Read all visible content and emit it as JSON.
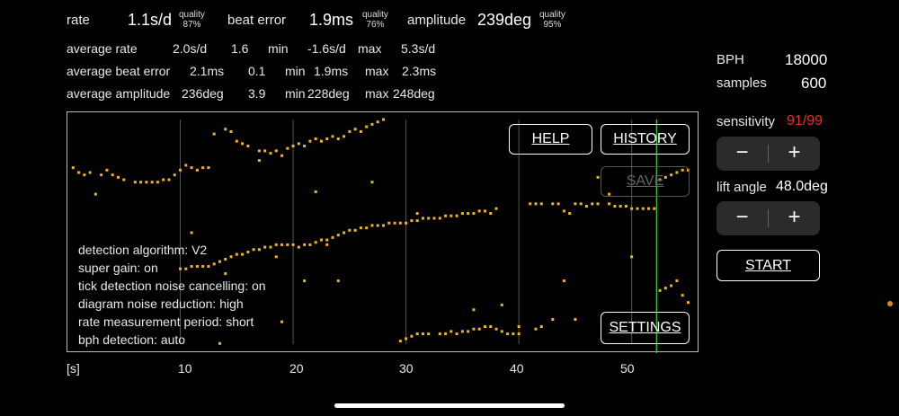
{
  "top": {
    "rate_label": "rate",
    "rate_value": "1.1s/d",
    "rate_quality_label": "quality",
    "rate_quality_value": "87%",
    "beat_label": "beat error",
    "beat_value": "1.9ms",
    "beat_quality_label": "quality",
    "beat_quality_value": "76%",
    "amp_label": "amplitude",
    "amp_value": "239deg",
    "amp_quality_label": "quality",
    "amp_quality_value": "95%"
  },
  "averages": {
    "rate": {
      "label": "average rate",
      "value": "2.0s/d",
      "spread": "1.6",
      "min_label": "min",
      "min": "-1.6s/d",
      "max_label": "max",
      "max": "5.3s/d"
    },
    "beat": {
      "label": "average beat error",
      "value": "2.1ms",
      "spread": "0.1",
      "min_label": "min",
      "min": "1.9ms",
      "max_label": "max",
      "max": "2.3ms"
    },
    "amp": {
      "label": "average amplitude",
      "value": "236deg",
      "spread": "3.9",
      "min_label": "min",
      "min": "228deg",
      "max_label": "max",
      "max": "248deg"
    }
  },
  "side": {
    "bph_label": "BPH",
    "bph_value": "18000",
    "samples_label": "samples",
    "samples_value": "600",
    "sensitivity_label": "sensitivity",
    "sensitivity_value": "91/99",
    "lift_label": "lift angle",
    "lift_value": "48.0deg",
    "minus": "−",
    "plus": "+",
    "start": "START"
  },
  "buttons": {
    "help": "HELP",
    "history": "HISTORY",
    "save": "SAVE",
    "settings": "SETTINGS"
  },
  "info": {
    "l1": "detection algorithm:   V2",
    "l2": "super gain:   on",
    "l3": "tick detection noise cancelling:   on",
    "l4": "diagram noise reduction:   high",
    "l5": "rate measurement period:   short",
    "l6": "bph detection:   auto"
  },
  "colors": {
    "dots": "#f0b429",
    "sensitivity": "#e8302a",
    "marker": "#3ad13a",
    "edge_dot": "#d98a1c"
  },
  "chart_data": {
    "type": "scatter",
    "xlabel": "[s]",
    "x_ticks": [
      "10",
      "20",
      "30",
      "40",
      "50"
    ],
    "xlim": [
      0,
      56
    ],
    "marker_x": 52.2,
    "series": [
      {
        "x": [
          0.5,
          1,
          1.5,
          2,
          3,
          3.5,
          4,
          4.5,
          5,
          6,
          6.5,
          7,
          7.5,
          8,
          8.5,
          9,
          9.5,
          10,
          10.5,
          11,
          11.5,
          12,
          12.5
        ],
        "y": [
          0.77,
          0.75,
          0.74,
          0.75,
          0.74,
          0.76,
          0.74,
          0.73,
          0.72,
          0.71,
          0.71,
          0.71,
          0.71,
          0.71,
          0.72,
          0.72,
          0.74,
          0.76,
          0.78,
          0.77,
          0.76,
          0.77,
          0.77
        ]
      },
      {
        "x": [
          14,
          14.5,
          15,
          15.5,
          16,
          17,
          17.5,
          18,
          18.5,
          19,
          19.5,
          20,
          20.5,
          21,
          21.5,
          22,
          22.5,
          23,
          23.5,
          24,
          24.5,
          25,
          25.5,
          26,
          26.5,
          27,
          27.5,
          28
        ],
        "y": [
          0.93,
          0.92,
          0.88,
          0.87,
          0.86,
          0.84,
          0.84,
          0.83,
          0.84,
          0.82,
          0.85,
          0.86,
          0.87,
          0.86,
          0.88,
          0.89,
          0.88,
          0.89,
          0.9,
          0.89,
          0.9,
          0.92,
          0.93,
          0.92,
          0.94,
          0.95,
          0.96,
          0.97
        ]
      },
      {
        "x": [
          10.5,
          11,
          11.5,
          12,
          12.5,
          13,
          13.5,
          14,
          14.5,
          15,
          15.5,
          16,
          16.5,
          17,
          17.5,
          18,
          18.5,
          19,
          19.5,
          20,
          20.5,
          21,
          21.5,
          22,
          22.5,
          23,
          23.5,
          24,
          24.5,
          25,
          25.5,
          26,
          26.5,
          27,
          27.5,
          28,
          28.5,
          29,
          29.5,
          30,
          30.5,
          31,
          31.5,
          32,
          32.5,
          33,
          33.5,
          34,
          34.5,
          35,
          35.5,
          36,
          36.5,
          37,
          37.5,
          38
        ],
        "y": [
          0.35,
          0.36,
          0.36,
          0.36,
          0.36,
          0.37,
          0.38,
          0.39,
          0.4,
          0.41,
          0.41,
          0.42,
          0.43,
          0.43,
          0.44,
          0.44,
          0.45,
          0.45,
          0.45,
          0.45,
          0.44,
          0.45,
          0.45,
          0.46,
          0.47,
          0.47,
          0.48,
          0.49,
          0.5,
          0.51,
          0.51,
          0.52,
          0.52,
          0.53,
          0.53,
          0.53,
          0.54,
          0.54,
          0.54,
          0.54,
          0.55,
          0.55,
          0.56,
          0.56,
          0.56,
          0.56,
          0.57,
          0.57,
          0.57,
          0.58,
          0.58,
          0.58,
          0.59,
          0.59,
          0.58,
          0.6
        ]
      },
      {
        "x": [
          41,
          41.5,
          42,
          43,
          43.5,
          44,
          44.5,
          45,
          45.5,
          46,
          46.5,
          47,
          48,
          48.5,
          49,
          49.5,
          50,
          50.5,
          51,
          51.5,
          52
        ],
        "y": [
          0.62,
          0.62,
          0.62,
          0.62,
          0.62,
          0.59,
          0.58,
          0.62,
          0.62,
          0.61,
          0.62,
          0.62,
          0.62,
          0.61,
          0.61,
          0.61,
          0.6,
          0.6,
          0.6,
          0.6,
          0.6
        ]
      },
      {
        "x": [
          29.5,
          30,
          30.5,
          31,
          31.5,
          32,
          33,
          33.5,
          34,
          34.5,
          35,
          35.5,
          36,
          36.5,
          37,
          37.5,
          38,
          38.5,
          39,
          39.5,
          40,
          41.5,
          42
        ],
        "y": [
          0.05,
          0.06,
          0.07,
          0.08,
          0.08,
          0.08,
          0.08,
          0.08,
          0.09,
          0.08,
          0.09,
          0.09,
          0.1,
          0.1,
          0.11,
          0.11,
          0.1,
          0.09,
          0.08,
          0.08,
          0.08,
          0.1,
          0.11
        ]
      },
      {
        "x": [
          52.5,
          53,
          53.5,
          54,
          54.5,
          55,
          52.5,
          53,
          53.5,
          54,
          54.5,
          55
        ],
        "y": [
          0.72,
          0.73,
          0.74,
          0.75,
          0.76,
          0.76,
          0.26,
          0.27,
          0.28,
          0.3,
          0.24,
          0.21
        ]
      },
      {
        "x": [
          2.5,
          10,
          11,
          14,
          17,
          18.5,
          21,
          22,
          24,
          27,
          31,
          36,
          38.5,
          40,
          43,
          45,
          47,
          48,
          13.5,
          13,
          19,
          23,
          44,
          50
        ],
        "y": [
          0.66,
          0.35,
          0.5,
          0.33,
          0.8,
          0.4,
          0.3,
          0.67,
          0.3,
          0.71,
          0.58,
          0.18,
          0.2,
          0.11,
          0.14,
          0.14,
          0.73,
          0.66,
          0.04,
          0.91,
          0.13,
          0.45,
          0.3,
          0.4
        ]
      }
    ]
  }
}
